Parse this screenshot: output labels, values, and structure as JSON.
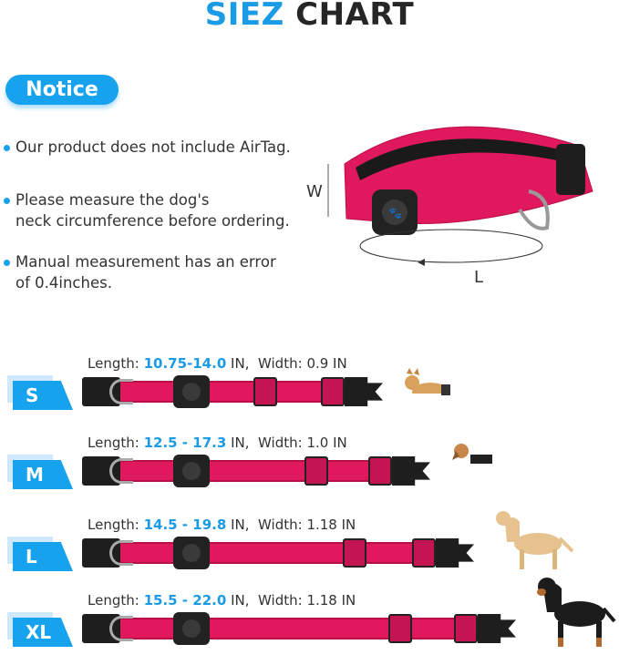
{
  "title": {
    "part1": "SIEZ",
    "part2": "CHART",
    "part1_color": "#1a9be6"
  },
  "notice": {
    "label": "Notice"
  },
  "bullets": [
    {
      "text": "Our product does not include AirTag."
    },
    {
      "text": "Please measure the dog's\nneck circumference before ordering."
    },
    {
      "text": "Manual measurement has an error\nof 0.4inches."
    }
  ],
  "diagram": {
    "width_label": "W",
    "length_label": "L"
  },
  "sizes": [
    {
      "size": "S",
      "length_label": "Length:",
      "length": "10.75-14.0",
      "length_unit": "IN,",
      "width_label": "Width:",
      "width": "0.9 IN",
      "dog": "corgi"
    },
    {
      "size": "M",
      "length_label": "Length:",
      "length": "12.5 - 17.3",
      "length_unit": "IN,",
      "width_label": "Width:",
      "width": "1.0 IN",
      "dog": "beagle"
    },
    {
      "size": "L",
      "length_label": "Length:",
      "length": "14.5 - 19.8",
      "length_unit": "IN,",
      "width_label": "Width:",
      "width": "1.18 IN",
      "dog": "labrador"
    },
    {
      "size": "XL",
      "length_label": "Length:",
      "length": "15.5 - 22.0",
      "length_unit": "IN,",
      "width_label": "Width:",
      "width": "1.18 IN",
      "dog": "rottweiler"
    }
  ],
  "colors": {
    "accent": "#17a2ee",
    "collar": "#e0195f"
  }
}
